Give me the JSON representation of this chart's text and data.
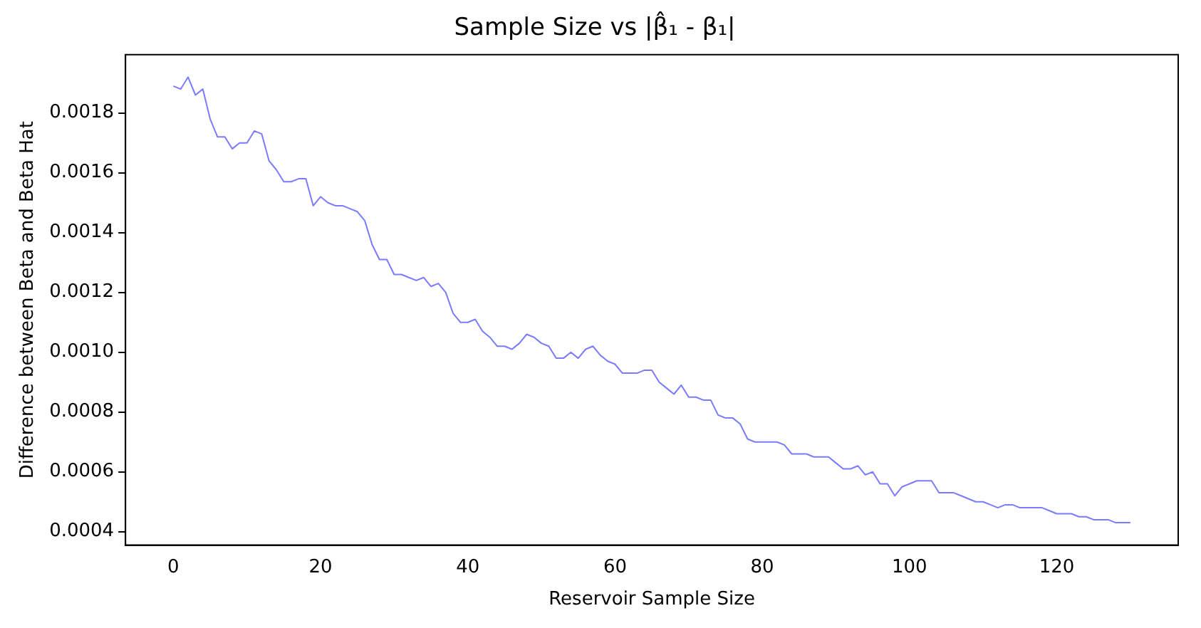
{
  "chart_data": {
    "type": "line",
    "title": "Sample Size vs |β̂₁ - β₁|",
    "xlabel": "Reservoir Sample Size",
    "ylabel": "Difference between Beta and Beta Hat",
    "x": [
      0,
      1,
      2,
      3,
      4,
      5,
      6,
      7,
      8,
      9,
      10,
      11,
      12,
      13,
      14,
      15,
      16,
      17,
      18,
      19,
      20,
      21,
      22,
      23,
      24,
      25,
      26,
      27,
      28,
      29,
      30,
      31,
      32,
      33,
      34,
      35,
      36,
      37,
      38,
      39,
      40,
      41,
      42,
      43,
      44,
      45,
      46,
      47,
      48,
      49,
      50,
      51,
      52,
      53,
      54,
      55,
      56,
      57,
      58,
      59,
      60,
      61,
      62,
      63,
      64,
      65,
      66,
      67,
      68,
      69,
      70,
      71,
      72,
      73,
      74,
      75,
      76,
      77,
      78,
      79,
      80,
      81,
      82,
      83,
      84,
      85,
      86,
      87,
      88,
      89,
      90,
      91,
      92,
      93,
      94,
      95,
      96,
      97,
      98,
      99,
      100,
      101,
      102,
      103,
      104,
      105,
      106,
      107,
      108,
      109,
      110,
      111,
      112,
      113,
      114,
      115,
      116,
      117,
      118,
      119,
      120,
      121,
      122,
      123,
      124,
      125,
      126,
      127,
      128,
      129,
      130
    ],
    "series": [
      {
        "color": "#7b7bff",
        "values": [
          0.00189,
          0.00188,
          0.00192,
          0.00186,
          0.00188,
          0.00178,
          0.00172,
          0.00172,
          0.00168,
          0.0017,
          0.0017,
          0.00174,
          0.00173,
          0.00164,
          0.00161,
          0.00157,
          0.00157,
          0.00158,
          0.00158,
          0.00149,
          0.00152,
          0.0015,
          0.00149,
          0.00149,
          0.00148,
          0.00147,
          0.00144,
          0.00136,
          0.00131,
          0.00131,
          0.00126,
          0.00126,
          0.00125,
          0.00124,
          0.00125,
          0.00122,
          0.00123,
          0.0012,
          0.00113,
          0.0011,
          0.0011,
          0.00111,
          0.00107,
          0.00105,
          0.00102,
          0.00102,
          0.00101,
          0.00103,
          0.00106,
          0.00105,
          0.00103,
          0.00102,
          0.00098,
          0.00098,
          0.001,
          0.00098,
          0.00101,
          0.00102,
          0.00099,
          0.00097,
          0.00096,
          0.00093,
          0.00093,
          0.00093,
          0.00094,
          0.00094,
          0.0009,
          0.00088,
          0.00086,
          0.00089,
          0.00085,
          0.00085,
          0.00084,
          0.00084,
          0.00079,
          0.00078,
          0.00078,
          0.00076,
          0.00071,
          0.0007,
          0.0007,
          0.0007,
          0.0007,
          0.00069,
          0.00066,
          0.00066,
          0.00066,
          0.00065,
          0.00065,
          0.00065,
          0.00063,
          0.00061,
          0.00061,
          0.00062,
          0.00059,
          0.0006,
          0.00056,
          0.00056,
          0.00052,
          0.00055,
          0.00056,
          0.00057,
          0.00057,
          0.00057,
          0.00053,
          0.00053,
          0.00053,
          0.00052,
          0.00051,
          0.0005,
          0.0005,
          0.00049,
          0.00048,
          0.00049,
          0.00049,
          0.00048,
          0.00048,
          0.00048,
          0.00048,
          0.00047,
          0.00046,
          0.00046,
          0.00046,
          0.00045,
          0.00045,
          0.00044,
          0.00044,
          0.00044,
          0.00043,
          0.00043,
          0.00043
        ]
      }
    ],
    "xlim": [
      -6.5,
      136.5
    ],
    "xticks": [
      0,
      20,
      40,
      60,
      80,
      100,
      120
    ],
    "ylim": [
      0.000355,
      0.001995
    ],
    "yticks": [
      {
        "value": 0.0004,
        "label": "0.0004"
      },
      {
        "value": 0.0006,
        "label": "0.0006"
      },
      {
        "value": 0.0008,
        "label": "0.0008"
      },
      {
        "value": 0.001,
        "label": "0.0010"
      },
      {
        "value": 0.0012,
        "label": "0.0012"
      },
      {
        "value": 0.0014,
        "label": "0.0014"
      },
      {
        "value": 0.0016,
        "label": "0.0016"
      },
      {
        "value": 0.0018,
        "label": "0.0018"
      }
    ],
    "grid": false,
    "legend": false,
    "marker": "none",
    "line_style": "solid"
  }
}
